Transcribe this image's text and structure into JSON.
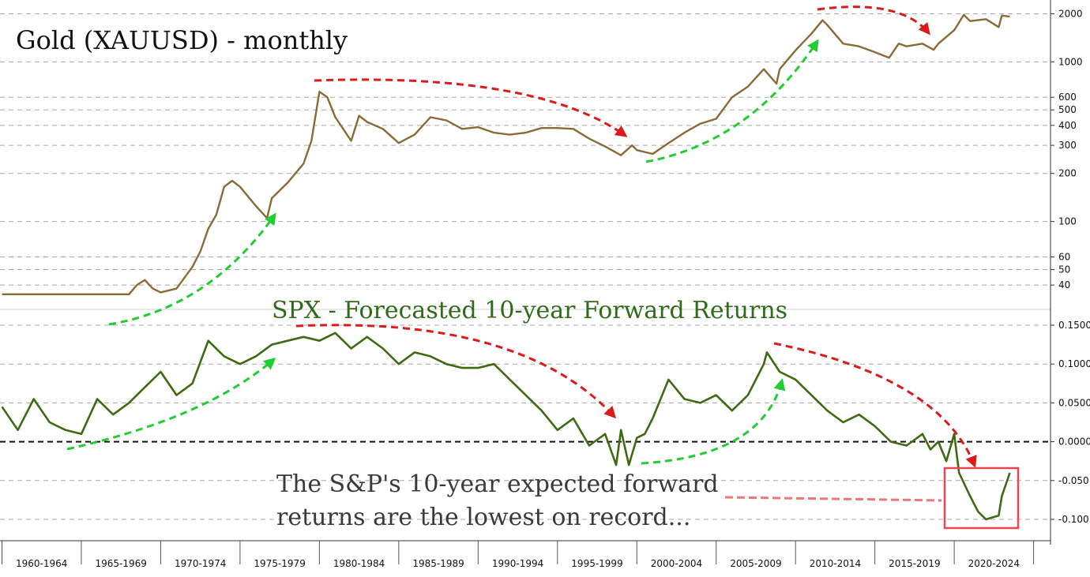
{
  "chart_data": [
    {
      "type": "line",
      "title": "Gold (XAUUSD) - monthly",
      "scale": "log",
      "ylim": [
        33,
        2080
      ],
      "yticks": [
        "2000",
        "1000",
        "600",
        "500",
        "400",
        "300",
        "200",
        "100",
        "60",
        "50",
        "40"
      ],
      "grid": true,
      "color": "#8a6a35",
      "series": [
        {
          "x": [
            1960.0,
            1967.0,
            1968.0,
            1968.5,
            1969.0,
            1969.5,
            1970.0,
            1971.0,
            1972.0,
            1972.5,
            1973.0,
            1973.5,
            1974.0,
            1974.5,
            1975.0,
            1976.0,
            1976.7,
            1977.0,
            1978.0,
            1979.0,
            1979.5,
            1980.0,
            1980.5,
            1981.0,
            1982.0,
            1982.5,
            1983.0,
            1984.0,
            1985.0,
            1986.0,
            1987.0,
            1988.0,
            1989.0,
            1990.0,
            1991.0,
            1992.0,
            1993.0,
            1994.0,
            1995.0,
            1996.0,
            1997.0,
            1998.0,
            1999.0,
            1999.7,
            2000.0,
            2001.0,
            2002.0,
            2003.0,
            2004.0,
            2005.0,
            2006.0,
            2007.0,
            2008.0,
            2008.8,
            2009.0,
            2010.0,
            2011.0,
            2011.7,
            2012.0,
            2013.0,
            2014.0,
            2015.0,
            2015.9,
            2016.5,
            2017.0,
            2018.0,
            2018.7,
            2019.0,
            2020.0,
            2020.6,
            2021.0,
            2022.0,
            2022.8,
            2023.0,
            2023.5
          ],
          "y": [
            35,
            35,
            35,
            40,
            43,
            38,
            36,
            38,
            52,
            65,
            90,
            110,
            165,
            180,
            165,
            125,
            105,
            140,
            175,
            230,
            320,
            650,
            600,
            450,
            320,
            460,
            420,
            380,
            310,
            350,
            450,
            430,
            380,
            390,
            360,
            350,
            360,
            385,
            385,
            380,
            330,
            295,
            260,
            300,
            280,
            265,
            310,
            360,
            410,
            440,
            600,
            700,
            900,
            730,
            900,
            1180,
            1500,
            1820,
            1700,
            1300,
            1250,
            1150,
            1060,
            1300,
            1250,
            1300,
            1190,
            1300,
            1580,
            1970,
            1800,
            1850,
            1650,
            1950,
            1920
          ]
        }
      ]
    },
    {
      "type": "line",
      "title": "SPX - Forecasted 10-year Forward Returns",
      "ylim": [
        -0.128,
        0.16
      ],
      "yticks": [
        "0.1500",
        "0.1000",
        "0.0500",
        "0.0000",
        "-0.050",
        "-0.100"
      ],
      "grid": true,
      "color": "#3d6b12",
      "series": [
        {
          "x": [
            1960.0,
            1961.0,
            1962.0,
            1963.0,
            1964.0,
            1965.0,
            1966.0,
            1967.0,
            1968.0,
            1969.0,
            1970.0,
            1971.0,
            1972.0,
            1973.0,
            1974.0,
            1975.0,
            1976.0,
            1977.0,
            1978.0,
            1979.0,
            1980.0,
            1981.0,
            1982.0,
            1983.0,
            1984.0,
            1985.0,
            1986.0,
            1987.0,
            1988.0,
            1989.0,
            1990.0,
            1991.0,
            1992.0,
            1993.0,
            1994.0,
            1995.0,
            1996.0,
            1997.0,
            1998.0,
            1998.7,
            1999.0,
            1999.5,
            2000.0,
            2000.5,
            2001.0,
            2002.0,
            2002.8,
            2003.0,
            2004.0,
            2005.0,
            2006.0,
            2007.0,
            2008.0,
            2008.2,
            2009.0,
            2010.0,
            2011.0,
            2012.0,
            2013.0,
            2014.0,
            2015.0,
            2016.0,
            2017.0,
            2018.0,
            2018.5,
            2019.0,
            2019.5,
            2020.0,
            2020.3,
            2021.0,
            2021.5,
            2022.0,
            2022.8,
            2023.0,
            2023.5
          ],
          "y": [
            0.045,
            0.015,
            0.055,
            0.025,
            0.015,
            0.01,
            0.055,
            0.035,
            0.05,
            0.07,
            0.09,
            0.06,
            0.075,
            0.13,
            0.11,
            0.1,
            0.11,
            0.125,
            0.13,
            0.135,
            0.13,
            0.14,
            0.12,
            0.135,
            0.12,
            0.1,
            0.115,
            0.11,
            0.1,
            0.095,
            0.095,
            0.1,
            0.08,
            0.06,
            0.04,
            0.015,
            0.03,
            -0.005,
            0.01,
            -0.03,
            0.015,
            -0.03,
            0.005,
            0.01,
            0.03,
            0.08,
            0.06,
            0.055,
            0.05,
            0.06,
            0.04,
            0.06,
            0.1,
            0.115,
            0.09,
            0.08,
            0.06,
            0.04,
            0.025,
            0.035,
            0.02,
            0.0,
            -0.005,
            0.01,
            -0.01,
            0.0,
            -0.025,
            0.01,
            -0.04,
            -0.07,
            -0.09,
            -0.1,
            -0.095,
            -0.07,
            -0.04
          ]
        }
      ]
    }
  ],
  "annotation": {
    "line1": "The S&P's 10-year expected forward",
    "line2": "returns are the lowest on record..."
  },
  "x_axis": {
    "tick_labels": [
      "1960-1964",
      "1965-1969",
      "1970-1974",
      "1975-1979",
      "1980-1984",
      "1985-1989",
      "1990-1994",
      "1995-1999",
      "2000-2004",
      "2005-2009",
      "2010-2014",
      "2015-2019",
      "2020-2024"
    ]
  },
  "colors": {
    "gold_line": "#8a6a35",
    "spx_line": "#3d6b12",
    "up_arrow": "#22cc33",
    "down_arrow": "#dd1a1a",
    "highlight_box": "#e8484d",
    "title_gold": "#111111",
    "title_spx": "#2f6b1a"
  }
}
